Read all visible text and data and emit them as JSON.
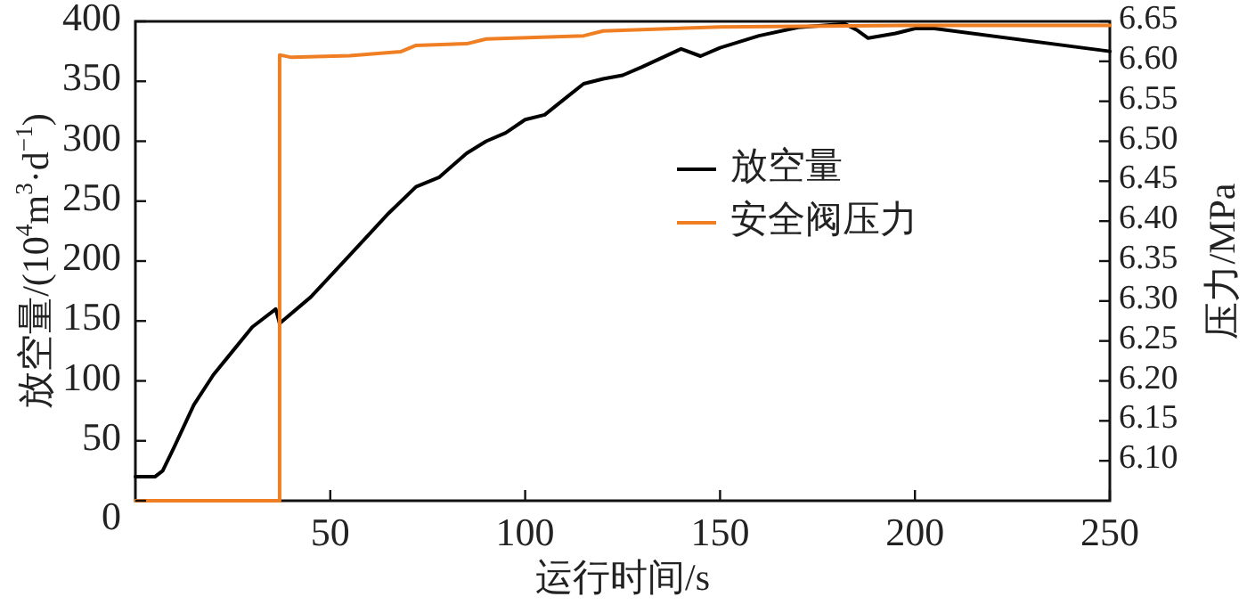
{
  "chart_data": {
    "type": "line",
    "xlabel": "运行时间/s",
    "ylabel": "放空量/(10$^{4}$m$^{3}$·d$^{−1}$)",
    "y2label": "压力/MPa",
    "xlim": [
      0,
      250
    ],
    "xticks": [
      50,
      100,
      150,
      200,
      250
    ],
    "ylim": [
      0,
      400
    ],
    "yticks": [
      0,
      50,
      100,
      150,
      200,
      250,
      300,
      350,
      400
    ],
    "y2lim": [
      6.05,
      6.65
    ],
    "y2ticks": [
      {
        "value": 6.1,
        "label": "6.10"
      },
      6.15,
      {
        "value": 6.2,
        "label": "6.20"
      },
      6.25,
      {
        "value": 6.3,
        "label": "6.30"
      },
      6.35,
      {
        "value": 6.4,
        "label": "6.40"
      },
      6.45,
      {
        "value": 6.5,
        "label": "6.50"
      },
      6.55,
      {
        "value": 6.6,
        "label": "6.60"
      },
      6.65
    ],
    "grid": false,
    "legend": "center",
    "line_style": "solid",
    "marker": "none",
    "series": [
      {
        "name": "放空量",
        "color": "#000000",
        "x": [
          0,
          5,
          7,
          10,
          15,
          20,
          25,
          30,
          36,
          37,
          45,
          55,
          65,
          72,
          78,
          85,
          90,
          95,
          100,
          105,
          110,
          115,
          120,
          125,
          130,
          140,
          145,
          150,
          160,
          170,
          182,
          185,
          188,
          195,
          200,
          205,
          250
        ],
        "values": [
          20,
          20,
          25,
          45,
          80,
          105,
          125,
          145,
          160,
          148,
          170,
          205,
          240,
          262,
          270,
          290,
          300,
          307,
          318,
          322,
          335,
          348,
          352,
          355,
          362,
          377,
          371,
          378,
          388,
          395,
          398,
          393,
          386,
          390,
          394,
          394,
          375
        ]
      },
      {
        "name": "安全阀压力",
        "color": "#f07f23",
        "axis": "y2",
        "x": [
          0,
          37,
          37,
          40,
          55,
          68,
          72,
          85,
          90,
          115,
          120,
          150,
          200,
          250
        ],
        "values": [
          6.05,
          6.05,
          6.608,
          6.605,
          6.607,
          6.612,
          6.62,
          6.622,
          6.628,
          6.632,
          6.638,
          6.643,
          6.645,
          6.645
        ]
      }
    ]
  }
}
